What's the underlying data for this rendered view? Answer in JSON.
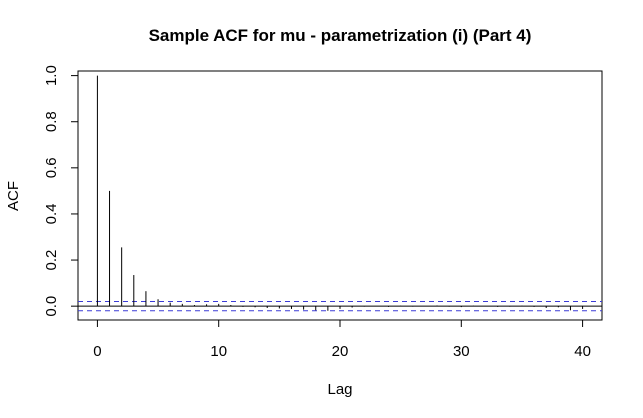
{
  "chart_data": {
    "type": "bar",
    "title": "Sample ACF for mu - parametrization (i) (Part 4)",
    "xlabel": "Lag",
    "ylabel": "ACF",
    "xlim": [
      -1.6,
      41.6
    ],
    "ylim": [
      -0.06,
      1.02
    ],
    "x_ticks": [
      0,
      10,
      20,
      30,
      40
    ],
    "x_tick_labels": [
      "0",
      "10",
      "20",
      "30",
      "40"
    ],
    "y_ticks": [
      0.0,
      0.2,
      0.4,
      0.6,
      0.8,
      1.0
    ],
    "y_tick_labels": [
      "0.0",
      "0.2",
      "0.4",
      "0.6",
      "0.8",
      "1.0"
    ],
    "lags": [
      0,
      1,
      2,
      3,
      4,
      5,
      6,
      7,
      8,
      9,
      10,
      11,
      12,
      13,
      14,
      15,
      16,
      17,
      18,
      19,
      20,
      21,
      22,
      23,
      24,
      25,
      26,
      27,
      28,
      29,
      30,
      31,
      32,
      33,
      34,
      35,
      36,
      37,
      38,
      39,
      40
    ],
    "values": [
      1.0,
      0.5,
      0.255,
      0.135,
      0.065,
      0.03,
      0.015,
      0.01,
      0.005,
      0.008,
      0.01,
      0.005,
      -0.003,
      -0.005,
      -0.008,
      -0.01,
      -0.012,
      -0.015,
      -0.018,
      -0.02,
      -0.012,
      -0.006,
      -0.002,
      0.0,
      -0.003,
      0.002,
      -0.002,
      0.0,
      0.003,
      -0.002,
      -0.004,
      0.002,
      0.0,
      -0.003,
      -0.002,
      0.002,
      -0.003,
      -0.008,
      -0.005,
      -0.018,
      -0.012
    ],
    "confidence_bound": 0.02,
    "colors": {
      "bars": "#000000",
      "zero_line": "#000000",
      "bounds": "#3b3bd6"
    }
  }
}
